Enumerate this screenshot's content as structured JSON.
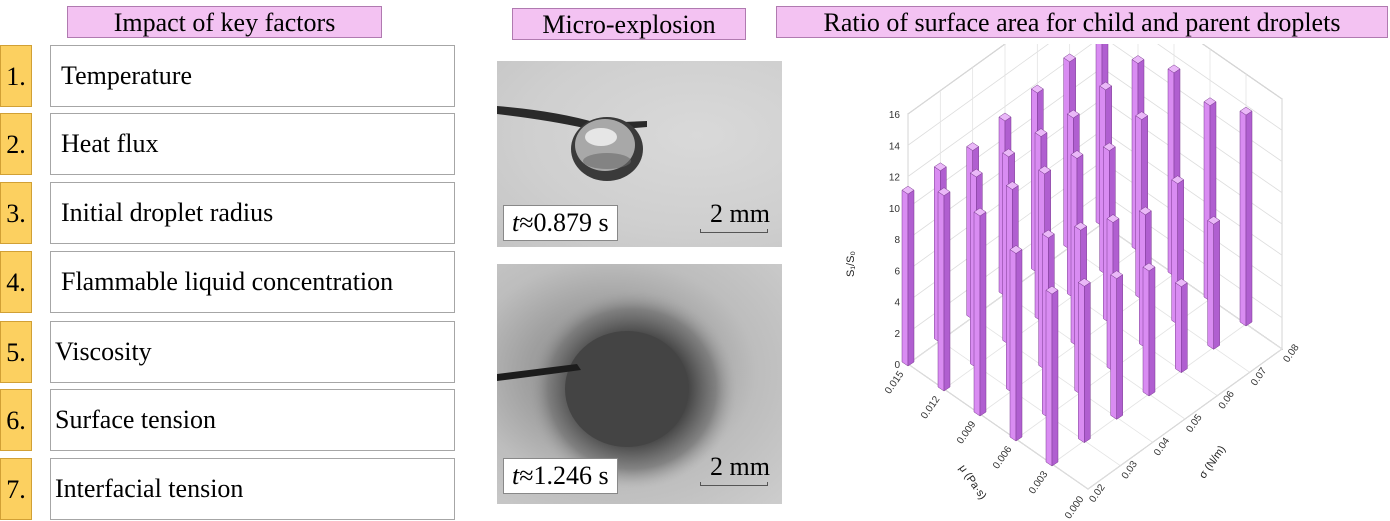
{
  "titles": {
    "factors": "Impact of key factors",
    "micro": "Micro-explosion",
    "ratio": "Ratio of surface area for child and parent droplets"
  },
  "factors": [
    {
      "num": "1.",
      "label": "Temperature"
    },
    {
      "num": "2.",
      "label": "Heat flux"
    },
    {
      "num": "3.",
      "label": "Initial droplet radius"
    },
    {
      "num": "4.",
      "label": "Flammable liquid concentration"
    },
    {
      "num": "5.",
      "label": "Viscosity"
    },
    {
      "num": "6.",
      "label": "Surface tension"
    },
    {
      "num": "7.",
      "label": "Interfacial tension"
    }
  ],
  "photos": [
    {
      "time_symbol": "t",
      "time_value": "≈0.879 s",
      "scale": "2 mm"
    },
    {
      "time_symbol": "t",
      "time_value": "≈1.246 s",
      "scale": "2 mm"
    }
  ],
  "colors": {
    "title_bg": "#f3c2f2",
    "number_bg": "#fcd060",
    "bar_front": "#d98cf2",
    "bar_side": "#b05fd0",
    "bar_top": "#eab8f8"
  },
  "chart_data": {
    "type": "bar3d",
    "zlabel": "S₁/S₀",
    "xlabel": "μ (Pa·s)",
    "ylabel": "σ (N/m)",
    "zlim": [
      0,
      16
    ],
    "z_ticks": [
      "0",
      "2",
      "4",
      "6",
      "8",
      "10",
      "12",
      "14",
      "16"
    ],
    "mu_ticks": [
      "0.000",
      "0.003",
      "0.006",
      "0.009",
      "0.012",
      "0.015"
    ],
    "sigma_ticks": [
      "0.02",
      "0.03",
      "0.04",
      "0.05",
      "0.06",
      "0.07",
      "0.08"
    ],
    "mu_values": [
      0.015,
      0.012,
      0.009,
      0.006,
      0.003
    ],
    "sigma_values": [
      0.02,
      0.03,
      0.04,
      0.05,
      0.06,
      0.07,
      0.08
    ],
    "values": [
      [
        11.0,
        11.0,
        10.8,
        11.2,
        11.5,
        12.0,
        12.3
      ],
      [
        12.5,
        12.2,
        12.0,
        11.8,
        11.5,
        11.8,
        12.0
      ],
      [
        12.8,
        13.0,
        12.5,
        12.0,
        11.0,
        11.5,
        13.0
      ],
      [
        12.0,
        11.5,
        10.5,
        9.5,
        8.5,
        9.0,
        12.5
      ],
      [
        11.0,
        10.0,
        9.0,
        8.0,
        5.5,
        8.0,
        13.5
      ]
    ]
  }
}
